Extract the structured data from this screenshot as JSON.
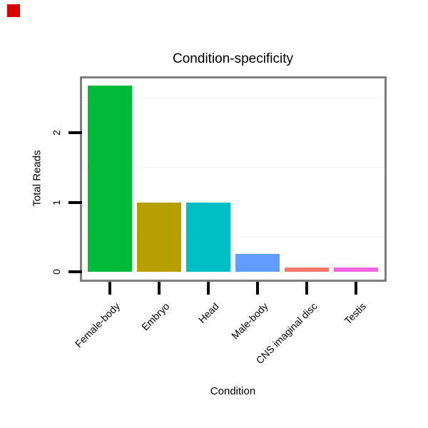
{
  "marker": {
    "color": "#dd0000"
  },
  "chart_data": {
    "type": "bar",
    "title": "Condition-specificity",
    "xlabel": "Condition",
    "ylabel": "Total Reads",
    "categories": [
      "Female-body",
      "Embryo",
      "Head",
      "Male-body",
      "CNS imaginal disc",
      "Testis"
    ],
    "values": [
      2.68,
      1.0,
      1.0,
      0.26,
      0.06,
      0.06
    ],
    "colors": [
      "#00BA38",
      "#B79F00",
      "#00BFC4",
      "#619CFF",
      "#F8766D",
      "#F564E3"
    ],
    "yticks": [
      0,
      1,
      2
    ],
    "minor_gridlines": [
      0.5,
      1.5,
      2.5
    ],
    "ylim": [
      -0.13,
      2.83
    ],
    "legend": "none",
    "grid": "horizontal minor gridlines only",
    "panel_border_color": "#7e7e7e",
    "gridline_color": "#f7f7f7",
    "tick_color": "#000000",
    "background_color": "#ffffff"
  }
}
